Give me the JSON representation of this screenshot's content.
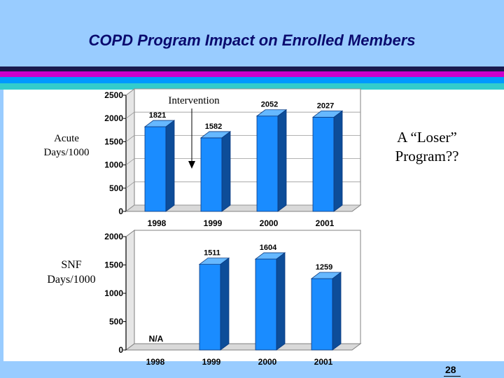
{
  "slide": {
    "title": "COPD Program Impact on Enrolled Members",
    "intervention_label": "Intervention",
    "callout": [
      "A “Loser”",
      "Program??"
    ],
    "page_number": "28",
    "colors": {
      "band": "#99ccff",
      "title": "#0a0a6e",
      "stripes": [
        "#1a1a4e",
        "#cc00cc",
        "#0099ff",
        "#33cccc"
      ],
      "bar_front": "#1a8cff",
      "bar_top": "#66b8ff",
      "bar_side": "#0d4d99"
    }
  },
  "chart_data": [
    {
      "type": "bar",
      "name": "acute",
      "ylabel": [
        "Acute",
        "Days/1000"
      ],
      "categories": [
        "1998",
        "1999",
        "2000",
        "2001"
      ],
      "values": [
        1821,
        1582,
        2052,
        2027
      ],
      "value_labels": [
        "1821",
        "1582",
        "2052",
        "2027"
      ],
      "ylim": [
        0,
        2500
      ],
      "yticks": [
        "0",
        "500",
        "1000",
        "1500",
        "2000",
        "2500"
      ],
      "grid": true
    },
    {
      "type": "bar",
      "name": "snf",
      "ylabel": [
        "SNF",
        "Days/1000"
      ],
      "categories": [
        "1998",
        "1999",
        "2000",
        "2001"
      ],
      "values": [
        null,
        1511,
        1604,
        1259
      ],
      "value_labels": [
        "N/A",
        "1511",
        "1604",
        "1259"
      ],
      "ylim": [
        0,
        2000
      ],
      "yticks": [
        "0",
        "500",
        "1000",
        "1500",
        "2000"
      ],
      "grid": false
    }
  ]
}
